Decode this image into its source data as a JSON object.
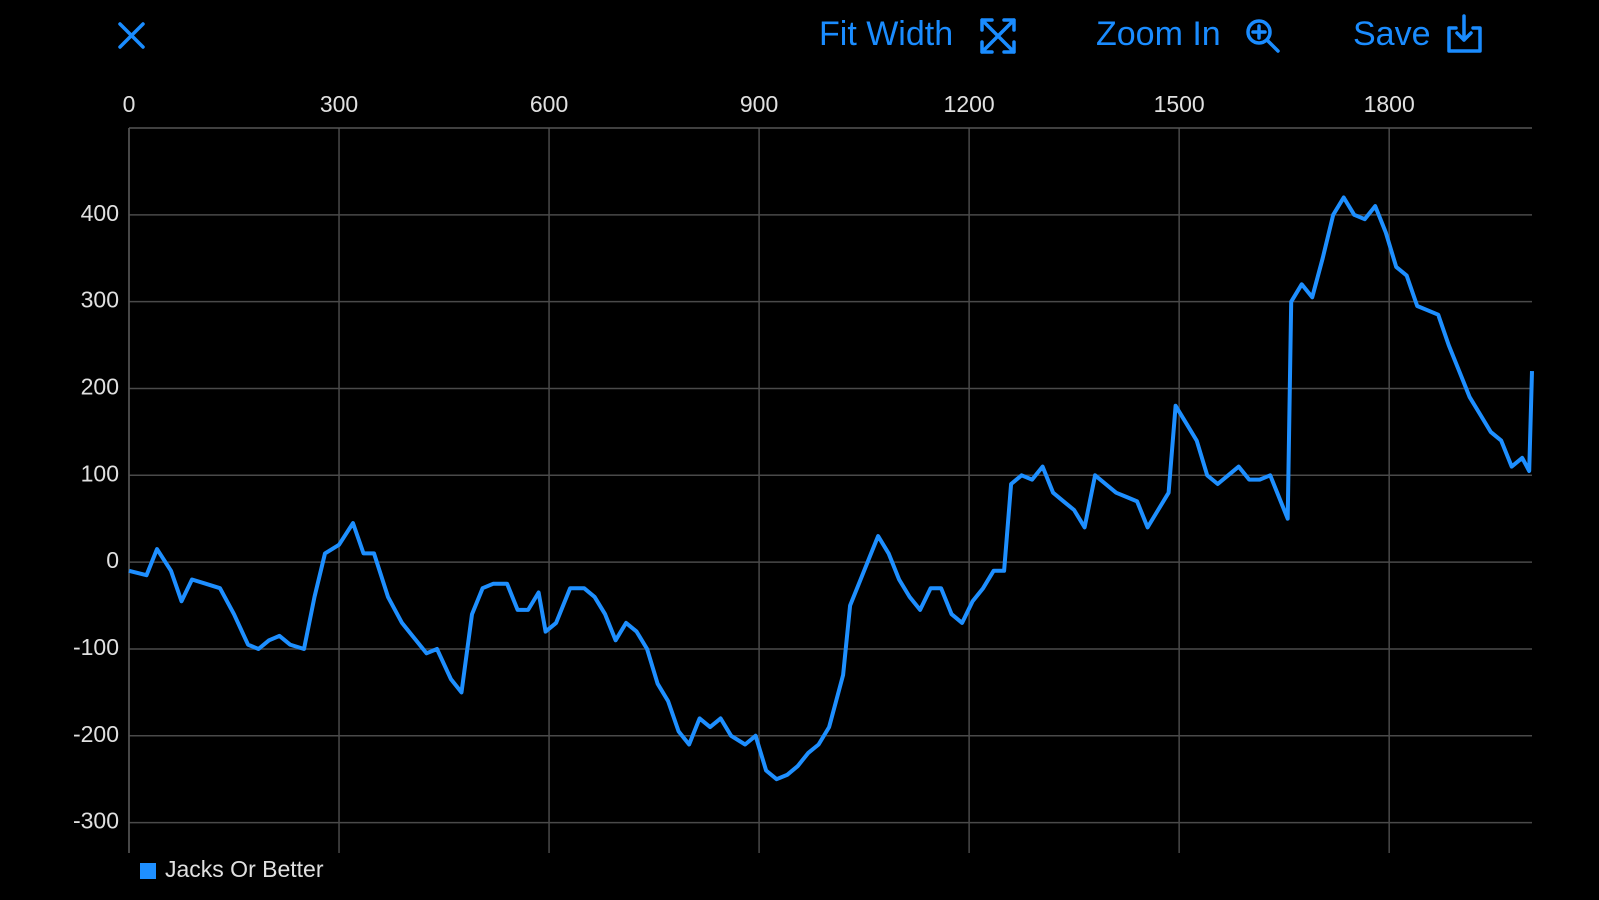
{
  "toolbar": {
    "fit_width": "Fit Width",
    "zoom_in": "Zoom In",
    "save": "Save"
  },
  "chart_data": {
    "type": "line",
    "x": [
      0,
      25,
      40,
      60,
      75,
      90,
      110,
      130,
      150,
      170,
      185,
      200,
      215,
      230,
      250,
      265,
      280,
      300,
      320,
      335,
      350,
      370,
      390,
      410,
      425,
      440,
      460,
      475,
      490,
      505,
      520,
      540,
      555,
      570,
      585,
      595,
      610,
      630,
      650,
      665,
      680,
      695,
      710,
      725,
      740,
      755,
      770,
      785,
      800,
      815,
      830,
      845,
      860,
      880,
      895,
      910,
      925,
      940,
      955,
      970,
      985,
      1000,
      1010,
      1020,
      1030,
      1045,
      1060,
      1070,
      1085,
      1100,
      1115,
      1130,
      1145,
      1160,
      1175,
      1190,
      1205,
      1220,
      1235,
      1250,
      1260,
      1275,
      1290,
      1305,
      1320,
      1335,
      1350,
      1365,
      1380,
      1395,
      1410,
      1425,
      1440,
      1455,
      1470,
      1485,
      1495,
      1510,
      1525,
      1540,
      1555,
      1570,
      1585,
      1600,
      1615,
      1630,
      1645,
      1655,
      1660,
      1675,
      1690,
      1705,
      1720,
      1735,
      1750,
      1765,
      1780,
      1795,
      1810,
      1825,
      1840,
      1855,
      1870,
      1885,
      1900,
      1915,
      1930,
      1945,
      1960,
      1975,
      1990,
      2000,
      2004
    ],
    "series": [
      {
        "name": "Jacks Or Better",
        "color": "#1e8fff",
        "values": [
          -10,
          -15,
          15,
          -10,
          -45,
          -20,
          -25,
          -30,
          -60,
          -95,
          -100,
          -90,
          -85,
          -95,
          -100,
          -40,
          10,
          20,
          45,
          10,
          10,
          -40,
          -70,
          -90,
          -105,
          -100,
          -135,
          -150,
          -60,
          -30,
          -25,
          -25,
          -55,
          -55,
          -35,
          -80,
          -70,
          -30,
          -30,
          -40,
          -60,
          -90,
          -70,
          -80,
          -100,
          -140,
          -160,
          -195,
          -210,
          -180,
          -190,
          -180,
          -200,
          -210,
          -200,
          -240,
          -250,
          -245,
          -235,
          -220,
          -210,
          -190,
          -160,
          -130,
          -50,
          -20,
          10,
          30,
          10,
          -20,
          -40,
          -55,
          -30,
          -30,
          -60,
          -70,
          -45,
          -30,
          -10,
          -10,
          90,
          100,
          95,
          110,
          80,
          70,
          60,
          40,
          100,
          90,
          80,
          75,
          70,
          40,
          60,
          80,
          180,
          160,
          140,
          100,
          90,
          100,
          110,
          95,
          95,
          100,
          70,
          50,
          300,
          320,
          305,
          350,
          400,
          420,
          400,
          395,
          410,
          380,
          340,
          330,
          295,
          290,
          285,
          250,
          220,
          190,
          170,
          150,
          140,
          110,
          120,
          105,
          220
        ]
      }
    ],
    "xlim": [
      0,
      2004
    ],
    "ylim": [
      -335,
      500
    ],
    "xticks": [
      0,
      300,
      600,
      900,
      1200,
      1500,
      1800
    ],
    "yticks": [
      -300,
      -200,
      -100,
      0,
      100,
      200,
      300,
      400
    ],
    "grid": true,
    "x_axis_position": "top",
    "legend": "bottom-left"
  }
}
